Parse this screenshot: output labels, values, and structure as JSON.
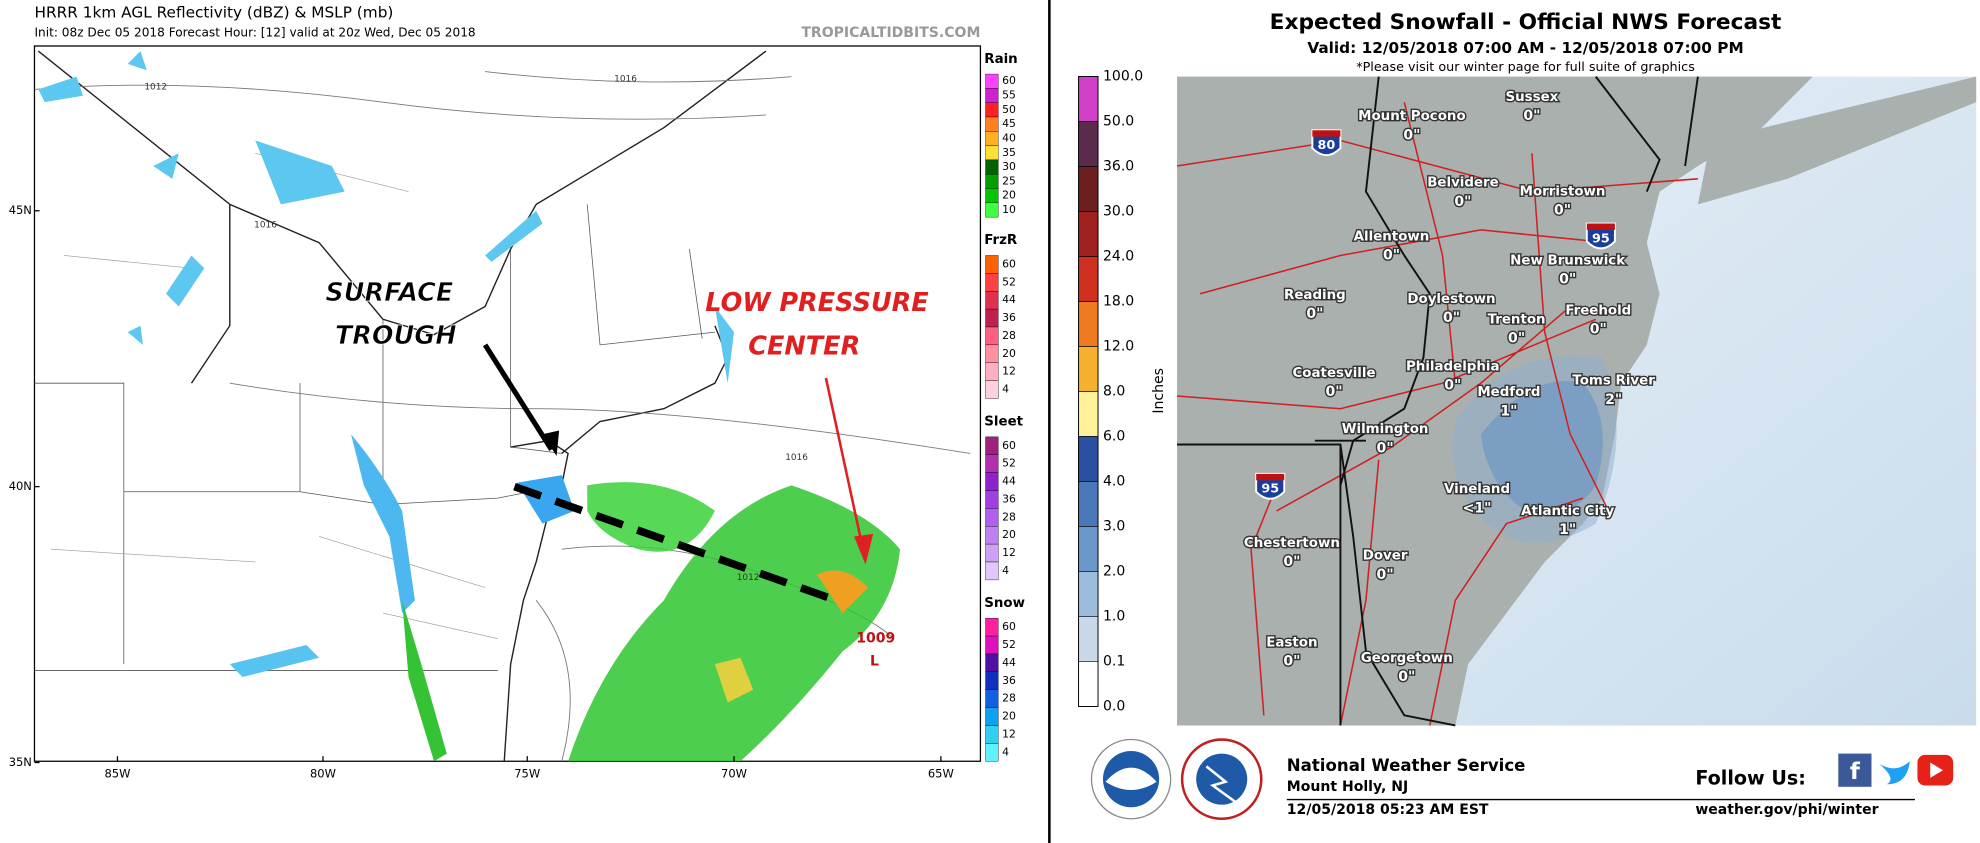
{
  "left": {
    "title": "HRRR 1km AGL Reflectivity (dBZ) & MSLP (mb)",
    "subtitle": "Init: 08z Dec 05 2018   Forecast Hour: [12]   valid at 20z Wed, Dec 05 2018",
    "watermark": "TROPICALTIDBITS.COM",
    "lat_labels": [
      "45N",
      "40N",
      "35N"
    ],
    "lon_labels": [
      "85W",
      "80W",
      "75W",
      "70W",
      "65W"
    ],
    "annotations": {
      "trough_1": "SURFACE",
      "trough_2": "TROUGH",
      "low_1": "LOW PRESSURE",
      "low_2": "CENTER"
    },
    "isobars": [
      "1012",
      "1016",
      "1016",
      "1016",
      "1012",
      "1009",
      "L"
    ],
    "legends": [
      {
        "name": "Rain",
        "ticks": [
          "60",
          "55",
          "50",
          "45",
          "40",
          "35",
          "30",
          "25",
          "20",
          "10"
        ]
      },
      {
        "name": "FrzR",
        "ticks": [
          "60",
          "52",
          "44",
          "36",
          "28",
          "20",
          "12",
          "4"
        ]
      },
      {
        "name": "Sleet",
        "ticks": [
          "60",
          "52",
          "44",
          "36",
          "28",
          "20",
          "12",
          "4"
        ]
      },
      {
        "name": "Snow",
        "ticks": [
          "60",
          "52",
          "44",
          "36",
          "28",
          "20",
          "12",
          "4"
        ]
      }
    ]
  },
  "right": {
    "title": "Expected Snowfall - Official NWS Forecast",
    "valid": "Valid: 12/05/2018 07:00 AM - 12/05/2018 07:00 PM",
    "note": "*Please visit our winter page for full suite of graphics",
    "colorbar_label": "Inches",
    "colorbar_ticks": [
      "100.0",
      "50.0",
      "36.0",
      "30.0",
      "24.0",
      "18.0",
      "12.0",
      "8.0",
      "6.0",
      "4.0",
      "3.0",
      "2.0",
      "1.0",
      "0.1",
      "0.0"
    ],
    "shields": [
      "80",
      "95",
      "95"
    ],
    "towns": [
      {
        "name": "Mount Pocono",
        "amount": "0\""
      },
      {
        "name": "Sussex",
        "amount": "0\""
      },
      {
        "name": "Belvidere",
        "amount": "0\""
      },
      {
        "name": "Morristown",
        "amount": "0\""
      },
      {
        "name": "Allentown",
        "amount": "0\""
      },
      {
        "name": "New Brunswick",
        "amount": "0\""
      },
      {
        "name": "Reading",
        "amount": "0\""
      },
      {
        "name": "Doylestown",
        "amount": "0\""
      },
      {
        "name": "Trenton",
        "amount": "0\""
      },
      {
        "name": "Freehold",
        "amount": "0\""
      },
      {
        "name": "Coatesville",
        "amount": "0\""
      },
      {
        "name": "Philadelphia",
        "amount": "0\""
      },
      {
        "name": "Medford",
        "amount": "1\""
      },
      {
        "name": "Toms River",
        "amount": "2\""
      },
      {
        "name": "Wilmington",
        "amount": "0\""
      },
      {
        "name": "Vineland",
        "amount": "<1\""
      },
      {
        "name": "Atlantic City",
        "amount": "1\""
      },
      {
        "name": "Chestertown",
        "amount": "0\""
      },
      {
        "name": "Dover",
        "amount": "0\""
      },
      {
        "name": "Easton",
        "amount": "0\""
      },
      {
        "name": "Georgetown",
        "amount": "0\""
      }
    ],
    "footer": {
      "office": "National Weather Service",
      "location": "Mount Holly, NJ",
      "issued": "12/05/2018 05:23 AM EST",
      "follow": "Follow Us:",
      "url": "weather.gov/phi/winter"
    }
  }
}
